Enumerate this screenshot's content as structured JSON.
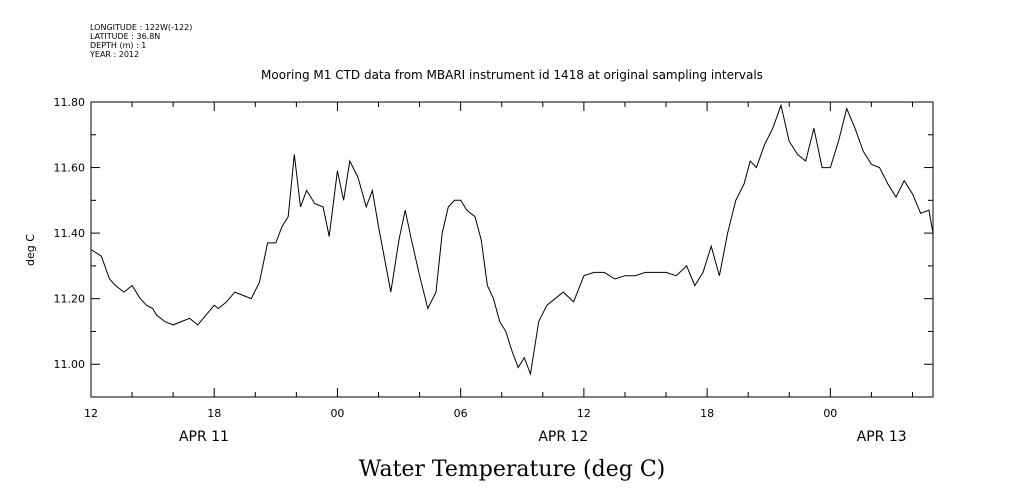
{
  "meta_lines": [
    "LONGITUDE : 122W(-122)",
    "LATITUDE : 36.8N",
    "DEPTH (m) : 1",
    "YEAR : 2012"
  ],
  "chart_data": {
    "type": "line",
    "title": "Mooring M1 CTD data from MBARI instrument id 1418 at original sampling intervals",
    "xlabel": "Water Temperature (deg C)",
    "ylabel": "deg C",
    "x_unit": "hours from APR 11 12:00",
    "xlim": [
      0,
      41
    ],
    "ylim": [
      10.9,
      11.8
    ],
    "y_ticks": [
      "11.00",
      "11.20",
      "11.40",
      "11.60",
      "11.80"
    ],
    "y_tick_values": [
      11.0,
      11.2,
      11.4,
      11.6,
      11.8
    ],
    "x_ticks": [
      {
        "x": 0,
        "label": "12"
      },
      {
        "x": 6,
        "label": "18"
      },
      {
        "x": 12,
        "label": "00"
      },
      {
        "x": 18,
        "label": "06"
      },
      {
        "x": 24,
        "label": "12"
      },
      {
        "x": 30,
        "label": "18"
      },
      {
        "x": 36,
        "label": "00"
      }
    ],
    "date_labels": [
      {
        "x": 5.5,
        "label": "APR 11"
      },
      {
        "x": 23,
        "label": "APR 12"
      },
      {
        "x": 38.5,
        "label": "APR 13"
      }
    ],
    "color": "#000000",
    "grid": false,
    "series": [
      {
        "x": [
          0,
          0.5,
          0.9,
          1.2,
          1.6,
          2.0,
          2.4,
          2.7,
          3.0,
          3.2,
          3.6,
          4.0,
          4.4,
          4.8,
          5.2,
          5.6,
          6.0,
          6.2,
          6.6,
          7.0,
          7.4,
          7.8,
          8.2,
          8.6,
          9.0,
          9.3,
          9.6,
          9.9,
          10.2,
          10.5,
          10.9,
          11.3,
          11.6,
          12.0,
          12.3,
          12.6,
          13.0,
          13.4,
          13.7,
          14.0,
          14.3,
          14.6,
          15.0,
          15.3,
          15.6,
          16.0,
          16.4,
          16.8,
          17.1,
          17.4,
          17.7,
          18.0,
          18.3,
          18.7,
          19.0,
          19.3,
          19.6,
          19.9,
          20.2,
          20.5,
          20.8,
          21.1,
          21.4,
          21.8,
          22.2,
          22.6,
          23.0,
          23.5,
          24.0,
          24.5,
          25.0,
          25.5,
          26.0,
          26.5,
          27.0,
          27.5,
          28.0,
          28.5,
          29.0,
          29.4,
          29.8,
          30.2,
          30.6,
          31.0,
          31.4,
          31.8,
          32.1,
          32.4,
          32.8,
          33.2,
          33.6,
          34.0,
          34.4,
          34.8,
          35.2,
          35.6,
          36.0,
          36.4,
          36.8,
          37.2,
          37.6,
          38.0,
          38.4,
          38.8,
          39.2,
          39.6,
          40.0,
          40.4,
          40.8,
          41.0
        ],
        "values": [
          11.35,
          11.33,
          11.26,
          11.24,
          11.22,
          11.24,
          11.2,
          11.18,
          11.17,
          11.15,
          11.13,
          11.12,
          11.13,
          11.14,
          11.12,
          11.15,
          11.18,
          11.17,
          11.19,
          11.22,
          11.21,
          11.2,
          11.25,
          11.37,
          11.37,
          11.42,
          11.45,
          11.64,
          11.48,
          11.53,
          11.49,
          11.48,
          11.39,
          11.59,
          11.5,
          11.62,
          11.57,
          11.48,
          11.53,
          11.42,
          11.32,
          11.22,
          11.38,
          11.47,
          11.38,
          11.27,
          11.17,
          11.22,
          11.4,
          11.48,
          11.5,
          11.5,
          11.47,
          11.45,
          11.38,
          11.24,
          11.2,
          11.13,
          11.1,
          11.04,
          10.99,
          11.02,
          10.97,
          11.13,
          11.18,
          11.2,
          11.22,
          11.19,
          11.27,
          11.28,
          11.28,
          11.26,
          11.27,
          11.27,
          11.28,
          11.28,
          11.28,
          11.27,
          11.3,
          11.24,
          11.28,
          11.36,
          11.27,
          11.4,
          11.5,
          11.55,
          11.62,
          11.6,
          11.67,
          11.72,
          11.79,
          11.68,
          11.64,
          11.62,
          11.72,
          11.6,
          11.6,
          11.68,
          11.78,
          11.72,
          11.65,
          11.61,
          11.6,
          11.55,
          11.51,
          11.56,
          11.52,
          11.46,
          11.47,
          11.4
        ]
      }
    ]
  }
}
